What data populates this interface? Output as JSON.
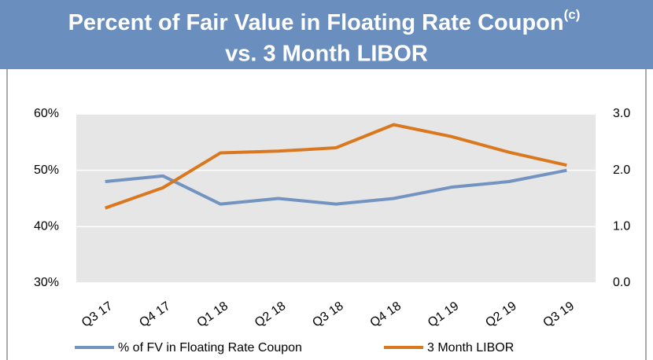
{
  "chart_data": {
    "type": "line",
    "title": [
      "Percent of Fair Value in Floating Rate Coupon",
      "vs. 3 Month LIBOR"
    ],
    "title_note": "(c)",
    "categories": [
      "Q3 17",
      "Q4 17",
      "Q1 18",
      "Q2 18",
      "Q3 18",
      "Q4 18",
      "Q1 19",
      "Q2 19",
      "Q3 19"
    ],
    "series": [
      {
        "name": "% of FV in Floating Rate Coupon",
        "color": "#7393c1",
        "values": [
          48,
          49,
          44,
          45,
          44,
          45,
          47,
          48,
          50
        ]
      },
      {
        "name": "3 Month LIBOR",
        "color": "#d9781e",
        "axis": "y2",
        "values": [
          1.33,
          1.69,
          2.31,
          2.34,
          2.4,
          2.81,
          2.6,
          2.32,
          2.09
        ]
      }
    ],
    "ylim": [
      30,
      60
    ],
    "yticks": [
      {
        "value": 30,
        "label": "30%"
      },
      {
        "value": 40,
        "label": "40%"
      },
      {
        "value": 50,
        "label": "50%"
      },
      {
        "value": 60,
        "label": "60%"
      }
    ],
    "y2lim": [
      0,
      3
    ],
    "y2ticks": [
      {
        "value": 0,
        "label": "0.0"
      },
      {
        "value": 1,
        "label": "1.0"
      },
      {
        "value": 2,
        "label": "2.0"
      },
      {
        "value": 3,
        "label": "3.0"
      }
    ],
    "grid": true,
    "legend": "bottom"
  }
}
